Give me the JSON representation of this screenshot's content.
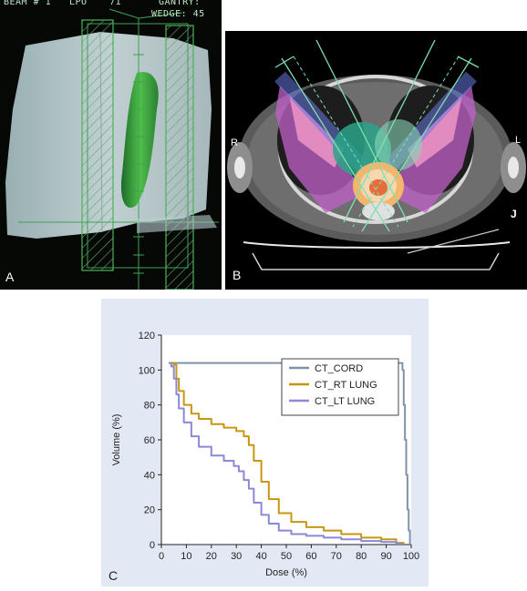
{
  "panel_a": {
    "label": "A",
    "hud": {
      "beam": "BEAM # 1",
      "lpo": "LPO",
      "lpo_value": "71",
      "gantry": "GANTRY:",
      "wedge": "WEDGE: 45"
    }
  },
  "panel_b": {
    "label": "B",
    "right_marker": "R",
    "left_marker": "L",
    "corner_marker": "J"
  },
  "panel_c": {
    "label": "C"
  },
  "chart_data": {
    "type": "line",
    "xlabel": "Dose (%)",
    "ylabel": "Volume (%)",
    "xlim": [
      0,
      100
    ],
    "ylim": [
      0,
      120
    ],
    "xticks": [
      0,
      10,
      20,
      30,
      40,
      50,
      60,
      70,
      80,
      90,
      100
    ],
    "yticks": [
      0,
      20,
      40,
      60,
      80,
      100,
      120
    ],
    "grid": false,
    "legend_position": "right",
    "series": [
      {
        "name": "CT_CORD",
        "color": "#7f93a8",
        "points": [
          [
            3,
            104
          ],
          [
            96,
            104
          ],
          [
            96.5,
            100
          ],
          [
            97,
            80
          ],
          [
            97.5,
            60
          ],
          [
            98,
            40
          ],
          [
            98.5,
            20
          ],
          [
            99,
            8
          ],
          [
            99.5,
            0
          ]
        ]
      },
      {
        "name": "CT_RT LUNG",
        "color": "#c9960f",
        "points": [
          [
            3,
            104
          ],
          [
            5,
            103
          ],
          [
            6,
            95
          ],
          [
            7,
            88
          ],
          [
            9,
            80
          ],
          [
            12,
            75
          ],
          [
            15,
            72
          ],
          [
            20,
            69
          ],
          [
            25,
            67
          ],
          [
            30,
            65
          ],
          [
            33,
            62
          ],
          [
            35,
            57
          ],
          [
            37,
            48
          ],
          [
            40,
            36
          ],
          [
            43,
            26
          ],
          [
            47,
            18
          ],
          [
            52,
            13
          ],
          [
            58,
            10
          ],
          [
            65,
            8
          ],
          [
            72,
            6
          ],
          [
            80,
            4
          ],
          [
            88,
            3
          ],
          [
            94,
            1
          ],
          [
            97,
            0
          ]
        ]
      },
      {
        "name": "CT_LT LUNG",
        "color": "#8a88d8",
        "points": [
          [
            3,
            104
          ],
          [
            4,
            102
          ],
          [
            5,
            95
          ],
          [
            6,
            86
          ],
          [
            7,
            78
          ],
          [
            9,
            70
          ],
          [
            12,
            62
          ],
          [
            15,
            56
          ],
          [
            20,
            51
          ],
          [
            25,
            48
          ],
          [
            29,
            45
          ],
          [
            31,
            42
          ],
          [
            33,
            37
          ],
          [
            35,
            32
          ],
          [
            37,
            24
          ],
          [
            40,
            17
          ],
          [
            43,
            12
          ],
          [
            47,
            8
          ],
          [
            52,
            6
          ],
          [
            58,
            5
          ],
          [
            65,
            4
          ],
          [
            72,
            3
          ],
          [
            80,
            2
          ],
          [
            88,
            1.5
          ],
          [
            94,
            0.5
          ],
          [
            96,
            0
          ]
        ]
      }
    ]
  }
}
